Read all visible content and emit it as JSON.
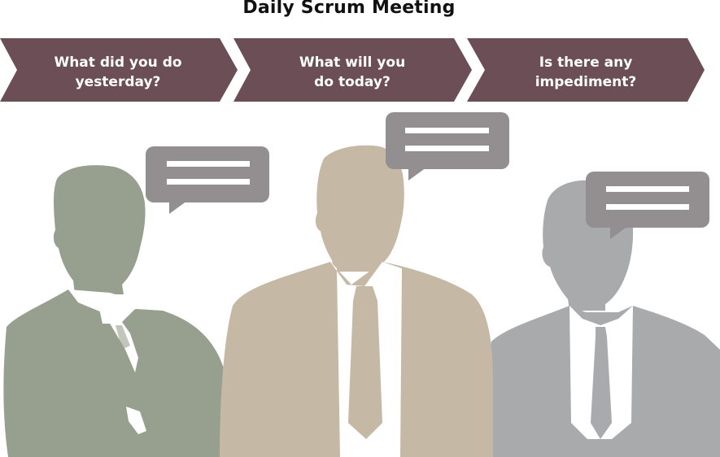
{
  "title": "Daily Scrum Meeting",
  "steps": [
    {
      "label": "What did you do yesterday?"
    },
    {
      "label": "What will you do today?"
    },
    {
      "label": "Is there any impediment?"
    }
  ],
  "colors": {
    "chevron": "#6b4e56",
    "person_left": "#97a08e",
    "person_center": "#c5b9a6",
    "person_right": "#a9aaac",
    "bubble": "#938f90",
    "bubble_lines": "#ffffff"
  }
}
